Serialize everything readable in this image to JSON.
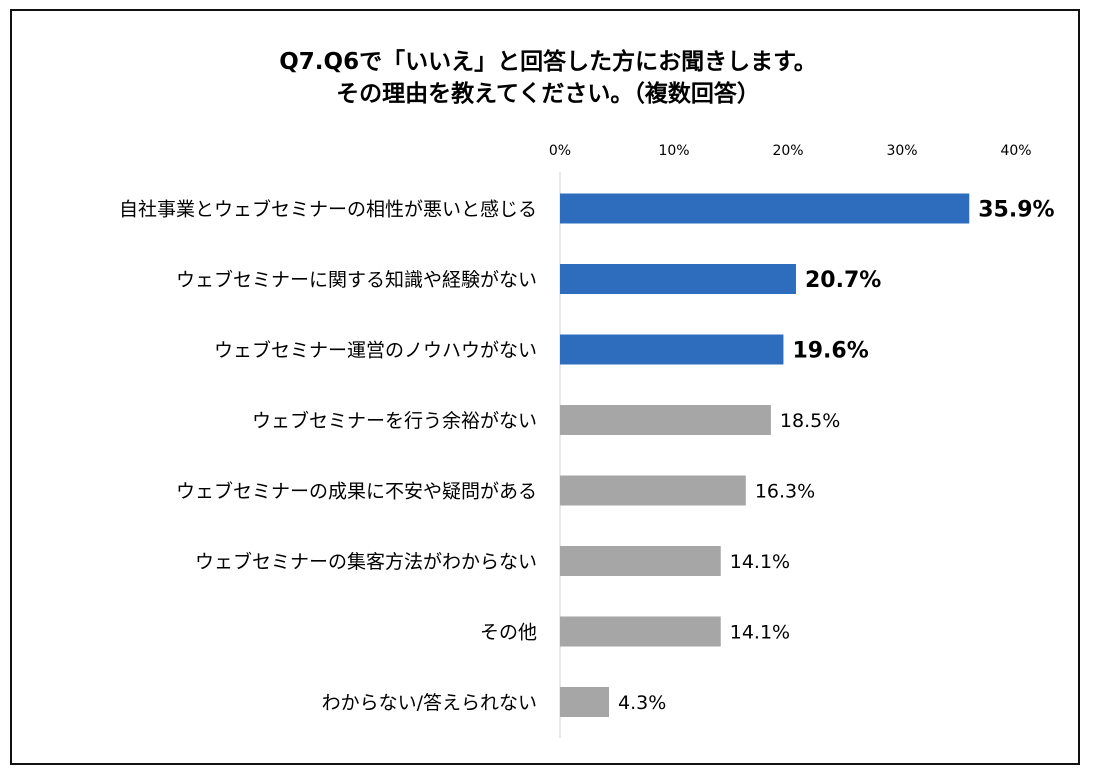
{
  "chart_data": {
    "type": "bar",
    "orientation": "horizontal",
    "title": [
      "Q7.Q6で「いいえ」と回答した方にお聞きします。",
      "その理由を教えてください。（複数回答）"
    ],
    "xlim": [
      0,
      40
    ],
    "x_ticks": [
      "0%",
      "10%",
      "20%",
      "30%",
      "40%"
    ],
    "x_tick_values": [
      0,
      10,
      20,
      30,
      40
    ],
    "categories": [
      "自社事業とウェブセミナーの相性が悪いと感じる",
      "ウェブセミナーに関する知識や経験がない",
      "ウェブセミナー運営のノウハウがない",
      "ウェブセミナーを行う余裕がない",
      "ウェブセミナーの成果に不安や疑問がある",
      "ウェブセミナーの集客方法がわからない",
      "その他",
      "わからない/答えられない"
    ],
    "values": [
      35.9,
      20.7,
      19.6,
      18.5,
      16.3,
      14.1,
      14.1,
      4.3
    ],
    "value_labels": [
      "35.9%",
      "20.7%",
      "19.6%",
      "18.5%",
      "16.3%",
      "14.1%",
      "14.1%",
      "4.3%"
    ],
    "highlighted": [
      true,
      true,
      true,
      false,
      false,
      false,
      false,
      false
    ],
    "colors": {
      "highlight": "#2E6DBE",
      "normal": "#A6A6A6",
      "axis": "#D0D0D0",
      "text": "#000000"
    },
    "grid": false,
    "legend": "none"
  }
}
